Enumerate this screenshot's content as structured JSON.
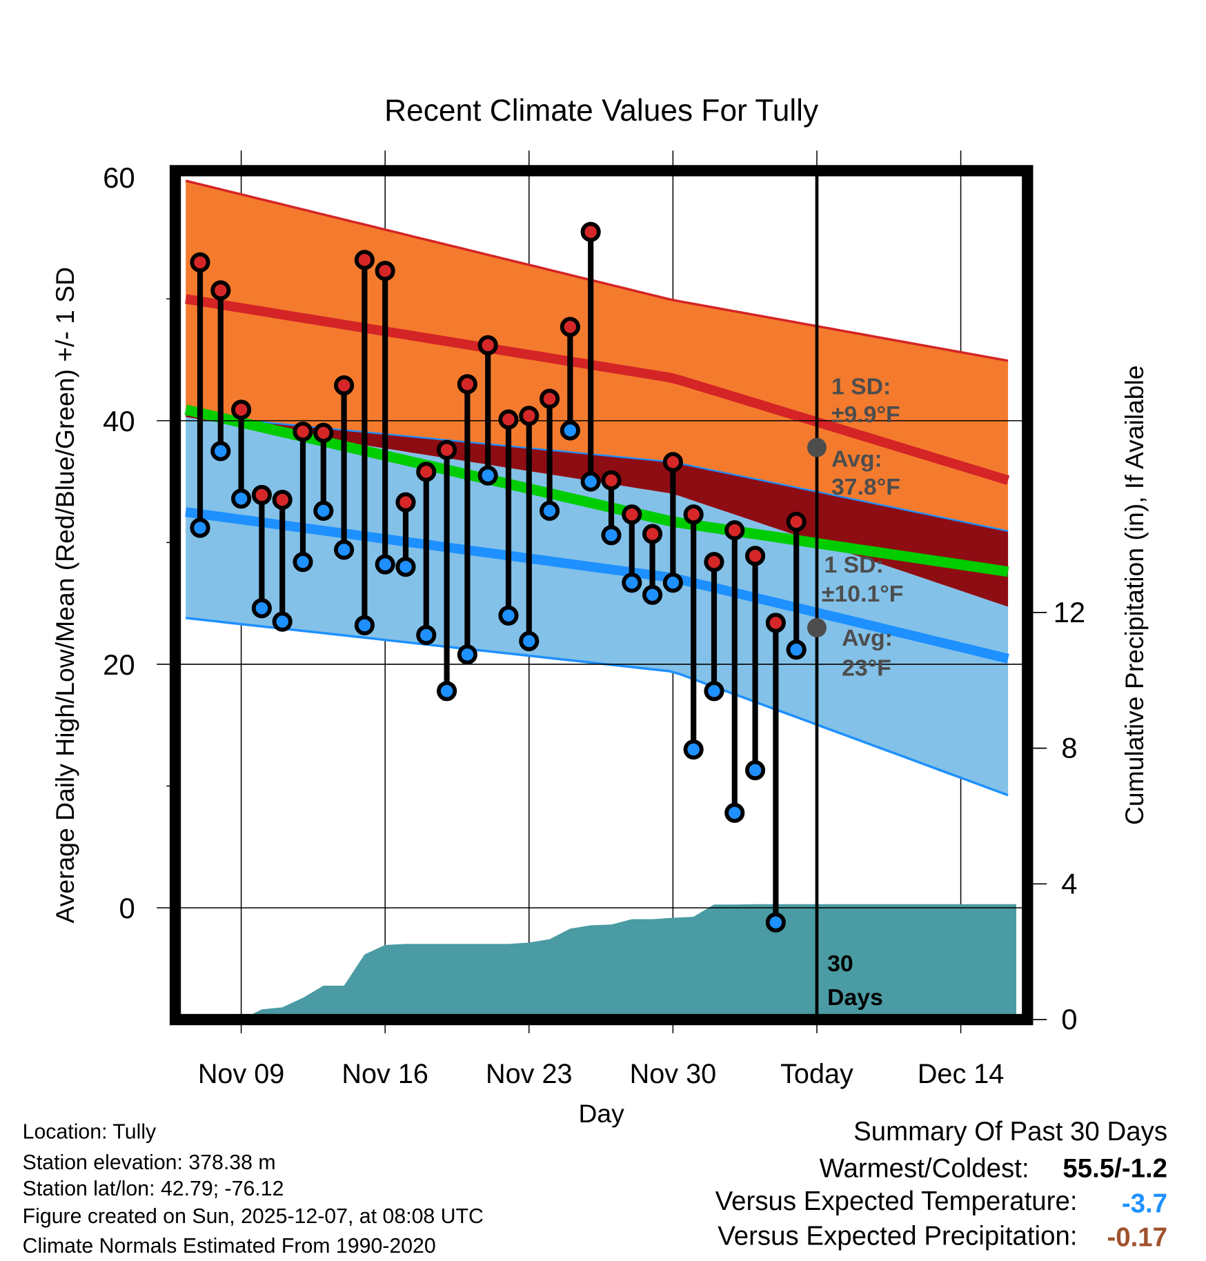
{
  "chart_data": {
    "type": "line",
    "title": "Recent Climate Values For Tully",
    "xlabel": "Day",
    "ylabel": "Average Daily High/Low/Mean (Red/Blue/Green) +/- 1 SD",
    "y2label": "Cumulative Precipitation (in), If Available",
    "ylim": [
      -8.8,
      60
    ],
    "y2lim": [
      0,
      16
    ],
    "yticks": [
      0,
      20,
      40,
      60
    ],
    "y2ticks": [
      0,
      4,
      8,
      12
    ],
    "xtick_labels": [
      {
        "day": 9,
        "label": "Nov 09"
      },
      {
        "day": 16,
        "label": "Nov 16"
      },
      {
        "day": 23,
        "label": "Nov 23"
      },
      {
        "day": 30,
        "label": "Nov 30"
      },
      {
        "day": 37,
        "label": "Today"
      },
      {
        "day": 44,
        "label": "Dec 14"
      }
    ],
    "xlim_days": [
      6.3,
      46.7
    ],
    "days_note": "day numbers counted from Nov 1 (Nov 30 = 30, Dec 7 = 37)",
    "daily": {
      "days": [
        7,
        8,
        9,
        10,
        11,
        12,
        13,
        14,
        15,
        16,
        17,
        18,
        19,
        20,
        21,
        22,
        23,
        24,
        25,
        26,
        27,
        28,
        29,
        30,
        31,
        32,
        33,
        34,
        35,
        36
      ],
      "high": [
        53.0,
        50.7,
        40.9,
        33.9,
        33.5,
        39.1,
        39.0,
        42.9,
        53.2,
        52.3,
        33.3,
        35.8,
        37.6,
        43.0,
        46.2,
        40.1,
        40.4,
        41.8,
        47.7,
        55.5,
        35.1,
        32.3,
        30.7,
        36.6,
        32.3,
        28.4,
        31.0,
        28.9,
        23.4,
        31.7
      ],
      "low": [
        31.2,
        37.5,
        33.6,
        24.6,
        23.5,
        28.4,
        32.6,
        29.4,
        23.2,
        28.2,
        28.0,
        22.4,
        17.8,
        20.8,
        35.5,
        24.0,
        21.9,
        32.6,
        39.2,
        35.0,
        30.6,
        26.7,
        25.7,
        26.7,
        13.0,
        17.8,
        7.8,
        11.3,
        -1.2,
        21.2
      ]
    },
    "normals": {
      "days": [
        6.3,
        30,
        46.7
      ],
      "high_avg": [
        50.0,
        43.5,
        34.9
      ],
      "high_plus_sd": [
        59.7,
        49.9,
        44.8
      ],
      "high_minus_sd": [
        40.5,
        36.6,
        30.8
      ],
      "mean": [
        40.9,
        31.7,
        27.5
      ],
      "low_avg": [
        32.5,
        27.1,
        20.3
      ],
      "low_plus_sd": [
        40.3,
        34.0,
        24.5
      ],
      "low_minus_sd": [
        23.8,
        19.4,
        9.0
      ]
    },
    "precip_cumulative": {
      "days": [
        9,
        10,
        11,
        12,
        13,
        14,
        15,
        16,
        17,
        22,
        23,
        24,
        25,
        26,
        27,
        28,
        29,
        30,
        31,
        32,
        33,
        34,
        46.7
      ],
      "values": [
        0.0,
        0.3,
        0.36,
        0.64,
        1.0,
        1.0,
        1.92,
        2.2,
        2.23,
        2.23,
        2.27,
        2.37,
        2.68,
        2.78,
        2.8,
        2.96,
        2.96,
        3.0,
        3.03,
        3.39,
        3.39,
        3.4,
        3.4
      ]
    },
    "annotations": {
      "high_sd_label": "1 SD:",
      "high_sd_value": "±9.9°F",
      "high_avg_label": "Avg:",
      "high_avg_value": "37.8°F",
      "low_sd_label": "1 SD:",
      "low_sd_value": "±10.1°F",
      "low_avg_label": "Avg:",
      "low_avg_value": "23°F",
      "days_num": "30",
      "days_word": "Days",
      "today_high_avg": 37.8,
      "today_low_avg": 23
    },
    "colors": {
      "high_band": "#f47b2e",
      "overlap_band": "#8e0d13",
      "low_band": "#83c1e8",
      "high_line": "#d42426",
      "low_line": "#1e90ff",
      "mean_line": "#00cc00",
      "precip": "#4a9ba3",
      "high_dot": "#d62728",
      "low_dot": "#1e90ff"
    }
  },
  "footer": {
    "location": "Location: Tully",
    "elevation": "Station elevation: 378.38 m",
    "latlon": "Station lat/lon: 42.79; -76.12",
    "created": "Figure created on Sun, 2025-12-07, at 08:08 UTC",
    "normals": "Climate Normals Estimated From 1990-2020"
  },
  "summary": {
    "title": "Summary Of Past 30 Days",
    "warm_cold_label": "Warmest/Coldest:",
    "warm_cold_value": "55.5/-1.2",
    "temp_label": "Versus Expected Temperature:",
    "temp_value": "-3.7",
    "temp_color": "#1e90ff",
    "precip_label": "Versus Expected Precipitation:",
    "precip_value": "-0.17",
    "precip_color": "#a0522d"
  }
}
